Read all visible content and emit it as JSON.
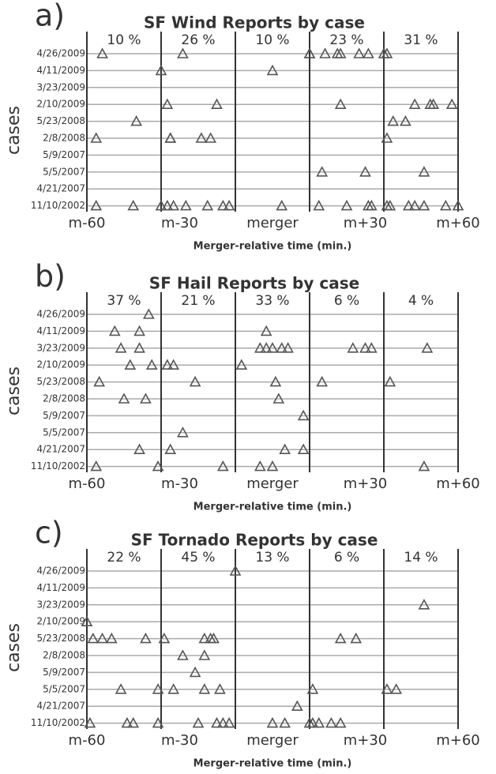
{
  "chart_data": [
    {
      "type": "scatter",
      "panel_label": "a)",
      "title": "SF Wind Reports by case",
      "xlabel": "Merger-relative time (min.)",
      "ylabel": "cases",
      "categories": [
        "4/26/2009",
        "4/11/2009",
        "3/23/2009",
        "2/10/2009",
        "5/23/2008",
        "2/8/2008",
        "5/9/2007",
        "5/5/2007",
        "4/21/2007",
        "11/10/2002"
      ],
      "x": [
        [
          -55,
          -29,
          12,
          12,
          17,
          21,
          22,
          28,
          31,
          36,
          37
        ],
        [
          -36,
          0
        ],
        [],
        [
          -34,
          -18,
          22,
          46,
          51,
          52,
          58
        ],
        [
          -44,
          39,
          43
        ],
        [
          -57,
          -33,
          -33,
          -23,
          -20,
          37
        ],
        [],
        [
          16,
          30,
          49
        ],
        [],
        [
          -57,
          -45,
          -36,
          -34,
          -32,
          -28,
          -21,
          -16,
          -14,
          3,
          15,
          24,
          31,
          32,
          37,
          38,
          44,
          46,
          49,
          56,
          60
        ]
      ],
      "xlim": [
        -60,
        60
      ],
      "xticks": [
        {
          "value": -60,
          "label": "m-60"
        },
        {
          "value": -30,
          "label": "m-30"
        },
        {
          "value": 0,
          "label": "merger"
        },
        {
          "value": 30,
          "label": "m+30"
        },
        {
          "value": 60,
          "label": "m+60"
        }
      ],
      "bin_edges": [
        -60,
        -36,
        -12,
        12,
        36,
        60
      ],
      "bin_percent": {
        "values": [
          10,
          26,
          10,
          23,
          31
        ],
        "value_labels": [
          "10 %",
          "26 %",
          "10 %",
          "23 %",
          "31 %"
        ]
      },
      "grid": true,
      "color": "#555555"
    },
    {
      "type": "scatter",
      "panel_label": "b)",
      "title": "SF Hail Reports by case",
      "xlabel": "Merger-relative time (min.)",
      "ylabel": "cases",
      "categories": [
        "4/26/2009",
        "4/11/2009",
        "3/23/2009",
        "2/10/2009",
        "5/23/2008",
        "2/8/2008",
        "5/9/2007",
        "5/5/2007",
        "4/21/2007",
        "11/10/2002"
      ],
      "x": [
        [
          -40
        ],
        [
          -51,
          -43,
          -2
        ],
        [
          -49,
          -43,
          -4,
          -2,
          0,
          3,
          5,
          26,
          30,
          32,
          50
        ],
        [
          -46,
          -39,
          -34,
          -32,
          -10
        ],
        [
          -56,
          -25,
          1,
          16,
          38
        ],
        [
          -48,
          -41,
          2
        ],
        [
          10
        ],
        [
          -29
        ],
        [
          -43,
          -33,
          4,
          10
        ],
        [
          -57,
          -37,
          -16,
          -4,
          0,
          49
        ]
      ],
      "xlim": [
        -60,
        60
      ],
      "xticks": [
        {
          "value": -60,
          "label": "m-60"
        },
        {
          "value": -30,
          "label": "m-30"
        },
        {
          "value": 0,
          "label": "merger"
        },
        {
          "value": 30,
          "label": "m+30"
        },
        {
          "value": 60,
          "label": "m+60"
        }
      ],
      "bin_edges": [
        -60,
        -36,
        -12,
        12,
        36,
        60
      ],
      "bin_percent": {
        "values": [
          37,
          21,
          33,
          6,
          4
        ],
        "value_labels": [
          "37 %",
          "21 %",
          "33 %",
          "6 %",
          "4 %"
        ]
      },
      "grid": true,
      "color": "#555555"
    },
    {
      "type": "scatter",
      "panel_label": "c)",
      "title": "SF Tornado Reports by case",
      "xlabel": "Merger-relative time (min.)",
      "ylabel": "cases",
      "categories": [
        "4/26/2009",
        "4/11/2009",
        "3/23/2009",
        "2/10/2009",
        "5/23/2008",
        "2/8/2008",
        "5/9/2007",
        "5/5/2007",
        "4/21/2007",
        "11/10/2002"
      ],
      "x": [
        [
          -12
        ],
        [],
        [
          49
        ],
        [
          -60
        ],
        [
          -58,
          -55,
          -52,
          -41,
          -35,
          -22,
          -20,
          -19,
          22,
          27
        ],
        [
          -29,
          -22
        ],
        [
          -25
        ],
        [
          -49,
          -37,
          -32,
          -22,
          -17,
          13,
          37,
          40
        ],
        [
          8
        ],
        [
          -59,
          -47,
          -45,
          -37,
          -24,
          -18,
          -16,
          -14,
          0,
          4,
          12,
          13,
          15,
          19,
          22
        ]
      ],
      "xlim": [
        -60,
        60
      ],
      "xticks": [
        {
          "value": -60,
          "label": "m-60"
        },
        {
          "value": -30,
          "label": "m-30"
        },
        {
          "value": 0,
          "label": "merger"
        },
        {
          "value": 30,
          "label": "m+30"
        },
        {
          "value": 60,
          "label": "m+60"
        }
      ],
      "bin_edges": [
        -60,
        -36,
        -12,
        12,
        36,
        60
      ],
      "bin_percent": {
        "values": [
          22,
          45,
          13,
          6,
          14
        ],
        "value_labels": [
          "22 %",
          "45 %",
          "13 %",
          "6 %",
          "14 %"
        ]
      },
      "grid": true,
      "color": "#555555"
    }
  ]
}
